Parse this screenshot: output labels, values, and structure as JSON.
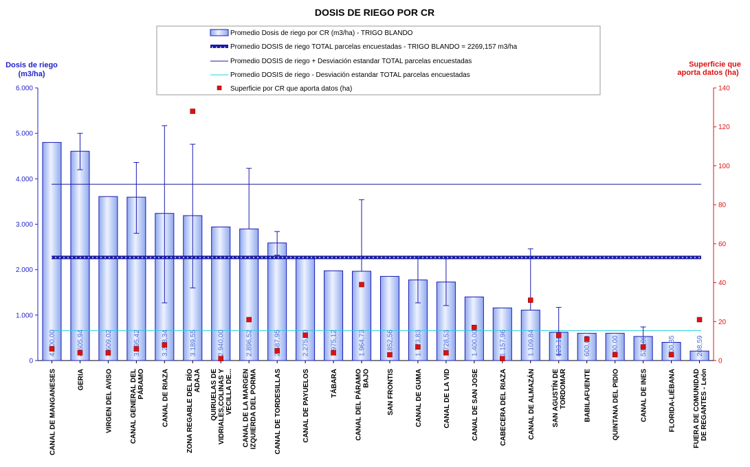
{
  "chart_data": {
    "type": "bar",
    "title": "DOSIS DE RIEGO POR CR",
    "ylabel_left": [
      "Dosis de riego",
      "(m3/ha)"
    ],
    "ylabel_right": [
      "Superficie que",
      "aporta datos (ha)"
    ],
    "ylim_left": [
      0,
      6000
    ],
    "ylim_right": [
      0,
      140
    ],
    "yticks_left": [
      "0",
      "1.000",
      "2.000",
      "3.000",
      "4.000",
      "5.000",
      "6.000"
    ],
    "yticks_right": [
      "0",
      "20",
      "40",
      "60",
      "80",
      "100",
      "120",
      "140"
    ],
    "categories": [
      [
        "CANAL DE MANGANESES"
      ],
      [
        "GERIA"
      ],
      [
        "VIRGEN DEL AVISO"
      ],
      [
        "CANAL GENERAL DEL",
        "PÁRAMO"
      ],
      [
        "CANAL DE RIAZA"
      ],
      [
        "ZONA REGABLE DEL RÍO",
        "ADAJA"
      ],
      [
        "QUIRUELAS DE",
        "VIDRIALES,COLINAS Y",
        "VECILLA DE..."
      ],
      [
        "CANAL DE LA MARGEN",
        "IZQUIERDA DEL PORMA"
      ],
      [
        "CANAL DE TORDESILLAS"
      ],
      [
        "CANAL DE PAYUELOS"
      ],
      [
        "TÁBARA"
      ],
      [
        "CANAL DEL PÁRAMO",
        "BAJO"
      ],
      [
        "SAN FRONTIS"
      ],
      [
        "CANAL DE GUMA"
      ],
      [
        "CANAL DE LA VID"
      ],
      [
        "CANAL DE SAN JOSE"
      ],
      [
        "CABECERA DEL RIAZA"
      ],
      [
        "CANAL DE ALMAZÁN"
      ],
      [
        "SAN AGUSTÍN DE",
        "TORDOMAR"
      ],
      [
        "BABILAFUENTE"
      ],
      [
        "QUINTANA DEL PIDIO"
      ],
      [
        "CANAL DE INES"
      ],
      [
        "FLORIDA-LIÉBANA"
      ],
      [
        "FUERA DE COMUNIDAD",
        "DE REGANTES - León"
      ]
    ],
    "bar_labels": [
      "4.800,00",
      "4.605,94",
      "3.609,02",
      "3.595,42",
      "3.238,34",
      "3.189,55",
      "2.940,00",
      "2.896,52",
      "2.587,95",
      "2.275,00",
      "1.975,12",
      "1.964,73",
      "1.852,56",
      "1.773,83",
      "1.728,53",
      "1.400,00",
      "1.157,96",
      "1.109,84",
      "623,18",
      "600,00",
      "600,00",
      "530,00",
      "400,35",
      "208,59"
    ],
    "series": [
      {
        "name": "Promedio Dosis de riego por CR (m3/ha) - TRIGO BLANDO",
        "values": [
          4800.0,
          4605.94,
          3609.02,
          3595.42,
          3238.34,
          3189.55,
          2940.0,
          2896.52,
          2587.95,
          2275.0,
          1975.12,
          1964.73,
          1852.56,
          1773.83,
          1728.53,
          1400.0,
          1157.96,
          1109.84,
          623.18,
          600.0,
          600.0,
          530.0,
          400.35,
          208.59
        ],
        "error_low": [
          null,
          4200,
          null,
          2800,
          1270,
          1600,
          null,
          null,
          2320,
          null,
          null,
          null,
          null,
          1270,
          1210,
          null,
          null,
          null,
          130,
          null,
          null,
          300,
          null,
          null
        ],
        "error_high": [
          null,
          5000,
          null,
          4360,
          5170,
          4760,
          null,
          4230,
          2840,
          null,
          null,
          3540,
          null,
          2260,
          2240,
          null,
          null,
          2460,
          1170,
          null,
          null,
          740,
          null,
          null
        ]
      },
      {
        "name": "Promedio DOSIS de riego TOTAL parcelas encuestadas - TRIGO BLANDO = 2269,157 m3/ha",
        "value": 2269.157
      },
      {
        "name": "Promedio DOSIS de riego + Desviación estandar TOTAL parcelas encuestadas",
        "value": 3880
      },
      {
        "name": "Promedio DOSIS de riego - Desviación estandar TOTAL parcelas encuestadas",
        "value": 660
      },
      {
        "name": "Superficie por CR que aporta datos (ha)",
        "axis": "right",
        "values": [
          6,
          4,
          4,
          6,
          8,
          128,
          1,
          21,
          5,
          13,
          4,
          39,
          3,
          7,
          4,
          17,
          1,
          31,
          13,
          11,
          3,
          7,
          3,
          21
        ]
      }
    ],
    "colors": {
      "bar_fill": "#c5d4f7",
      "bar_stroke": "#1a1ab0",
      "mean_line": "#1a1aa0",
      "plus_sd_line": "#1a1aa0",
      "minus_sd_line": "#22d0e0",
      "marker": "#dd1111",
      "left_axis": "#1f1fc8",
      "right_axis": "#e01010"
    },
    "grid": false,
    "legend_position": "top-center"
  }
}
